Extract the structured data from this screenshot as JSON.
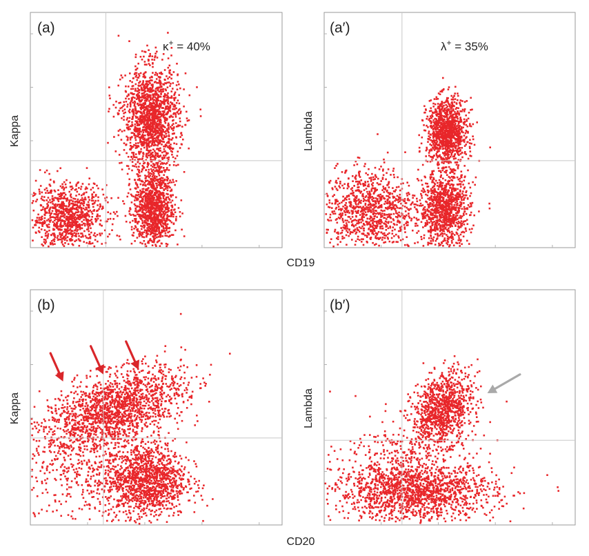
{
  "figure": {
    "shared_xlabels": [
      "CD19",
      "CD20"
    ],
    "colors": {
      "dots": "#e8262a",
      "red_arrow": "#d9262a",
      "gray_arrow": "#a9a9a9"
    }
  },
  "chart_data": [
    {
      "id": "a",
      "type": "scatter",
      "panel_label": "(a)",
      "ylabel": "Kappa",
      "xlabel": "CD19",
      "annotation": "κ+ = 40%",
      "annotation_parts": {
        "base": "κ",
        "sup": "+",
        "rest": " = 40%"
      },
      "xlim": [
        0,
        1
      ],
      "ylim": [
        0,
        1
      ],
      "quadrant": {
        "x": 0.3,
        "y": 0.37
      },
      "clusters": [
        {
          "name": "CD19- Kappa-",
          "cx": 0.15,
          "cy": 0.13,
          "sx": 0.075,
          "sy": 0.07,
          "n": 950
        },
        {
          "name": "CD19+ Kappa+",
          "cx": 0.48,
          "cy": 0.55,
          "sx": 0.055,
          "sy": 0.11,
          "n": 1500
        },
        {
          "name": "CD19+ Kappa-",
          "cx": 0.49,
          "cy": 0.17,
          "sx": 0.04,
          "sy": 0.09,
          "n": 1100
        }
      ]
    },
    {
      "id": "a2",
      "type": "scatter",
      "panel_label": "(a′)",
      "ylabel": "Lambda",
      "xlabel": "CD19",
      "annotation": "λ+ = 35%",
      "annotation_parts": {
        "base": "λ",
        "sup": "+",
        "rest": " = 35%"
      },
      "xlim": [
        0,
        1
      ],
      "ylim": [
        0,
        1
      ],
      "quadrant": {
        "x": 0.31,
        "y": 0.37
      },
      "clusters": [
        {
          "name": "CD19- Lambda-",
          "cx": 0.18,
          "cy": 0.16,
          "sx": 0.09,
          "sy": 0.09,
          "n": 1000
        },
        {
          "name": "CD19+ Lambda+",
          "cx": 0.49,
          "cy": 0.49,
          "sx": 0.04,
          "sy": 0.07,
          "n": 1100
        },
        {
          "name": "CD19+ Lambda-",
          "cx": 0.48,
          "cy": 0.16,
          "sx": 0.05,
          "sy": 0.08,
          "n": 1000
        }
      ]
    },
    {
      "id": "b",
      "type": "scatter",
      "panel_label": "(b)",
      "ylabel": "Kappa",
      "xlabel": "CD20",
      "annotation": "",
      "xlim": [
        0,
        1
      ],
      "ylim": [
        0,
        1
      ],
      "quadrant": {
        "x": 0.29,
        "y": 0.37
      },
      "clusters": [
        {
          "name": "Kappa+ smear",
          "cx": 0.33,
          "cy": 0.49,
          "sx": 0.14,
          "sy": 0.075,
          "n": 1700,
          "slope": 0.32
        },
        {
          "name": "CD20+ Kappa-",
          "cx": 0.46,
          "cy": 0.19,
          "sx": 0.08,
          "sy": 0.08,
          "n": 1300
        },
        {
          "name": "scattered",
          "cx": 0.2,
          "cy": 0.2,
          "sx": 0.13,
          "sy": 0.1,
          "n": 350
        }
      ],
      "arrows": [
        {
          "from": [
            0.08,
            0.73
          ],
          "to": [
            0.13,
            0.61
          ]
        },
        {
          "from": [
            0.24,
            0.76
          ],
          "to": [
            0.29,
            0.64
          ]
        },
        {
          "from": [
            0.38,
            0.78
          ],
          "to": [
            0.43,
            0.66
          ]
        }
      ]
    },
    {
      "id": "b2",
      "type": "scatter",
      "panel_label": "(b′)",
      "ylabel": "Lambda",
      "xlabel": "CD20",
      "annotation": "",
      "xlim": [
        0,
        1
      ],
      "ylim": [
        0,
        1
      ],
      "quadrant": {
        "x": 0.31,
        "y": 0.36
      },
      "clusters": [
        {
          "name": "CD20+ Lambda+",
          "cx": 0.47,
          "cy": 0.49,
          "sx": 0.06,
          "sy": 0.075,
          "n": 1000,
          "slope": 0.4
        },
        {
          "name": "Lambda- band",
          "cx": 0.36,
          "cy": 0.14,
          "sx": 0.16,
          "sy": 0.06,
          "n": 1500
        },
        {
          "name": "scattered",
          "cx": 0.33,
          "cy": 0.28,
          "sx": 0.13,
          "sy": 0.09,
          "n": 300
        }
      ],
      "arrows_gray": [
        {
          "from": [
            0.78,
            0.64
          ],
          "to": [
            0.65,
            0.56
          ]
        }
      ]
    }
  ]
}
